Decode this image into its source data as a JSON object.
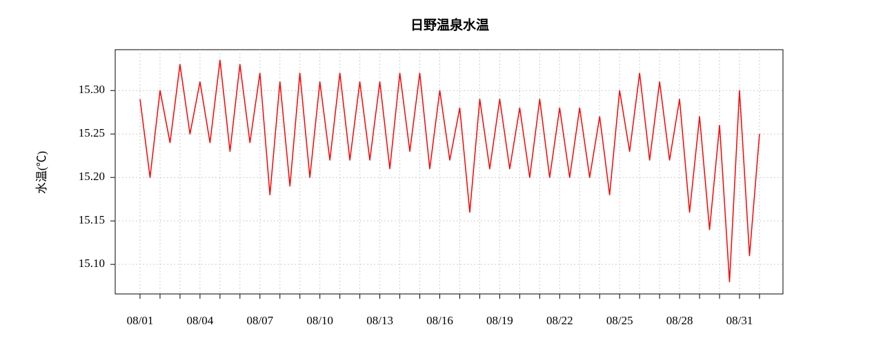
{
  "chart_data": {
    "type": "line",
    "title": "日野温泉水温",
    "y_label": "水温(℃)",
    "x": [
      "08/01",
      null,
      null,
      null,
      null,
      null,
      "08/04",
      null,
      null,
      null,
      null,
      null,
      "08/07",
      null,
      null,
      null,
      null,
      null,
      "08/10",
      null,
      null,
      null,
      null,
      null,
      "08/13",
      null,
      null,
      null,
      null,
      null,
      "08/16",
      null,
      null,
      null,
      null,
      null,
      "08/19",
      null,
      null,
      null,
      null,
      null,
      "08/22",
      null,
      null,
      null,
      null,
      null,
      "08/25",
      null,
      null,
      null,
      null,
      null,
      "08/28",
      null,
      null,
      null,
      null,
      null,
      "08/31",
      null,
      null
    ],
    "values": [
      15.29,
      15.2,
      15.3,
      15.24,
      15.33,
      15.25,
      15.31,
      15.24,
      15.335,
      15.23,
      15.33,
      15.24,
      15.32,
      15.18,
      15.31,
      15.19,
      15.32,
      15.2,
      15.31,
      15.22,
      15.32,
      15.22,
      15.31,
      15.22,
      15.31,
      15.21,
      15.32,
      15.23,
      15.32,
      15.21,
      15.3,
      15.22,
      15.28,
      15.16,
      15.29,
      15.21,
      15.29,
      15.21,
      15.28,
      15.2,
      15.29,
      15.2,
      15.28,
      15.2,
      15.28,
      15.2,
      15.27,
      15.18,
      15.3,
      15.23,
      15.32,
      15.22,
      15.31,
      15.22,
      15.29,
      15.16,
      15.27,
      15.14,
      15.26,
      15.08,
      15.3,
      15.11,
      15.25
    ],
    "color": "#ff0000",
    "ylim": [
      15.066,
      15.347
    ],
    "yticks": [
      {
        "value": 15.1,
        "label": "15.10"
      },
      15.15,
      {
        "value": 15.2,
        "label": "15.20"
      },
      15.25,
      {
        "value": 15.3,
        "label": "15.30"
      }
    ],
    "grid": true
  }
}
